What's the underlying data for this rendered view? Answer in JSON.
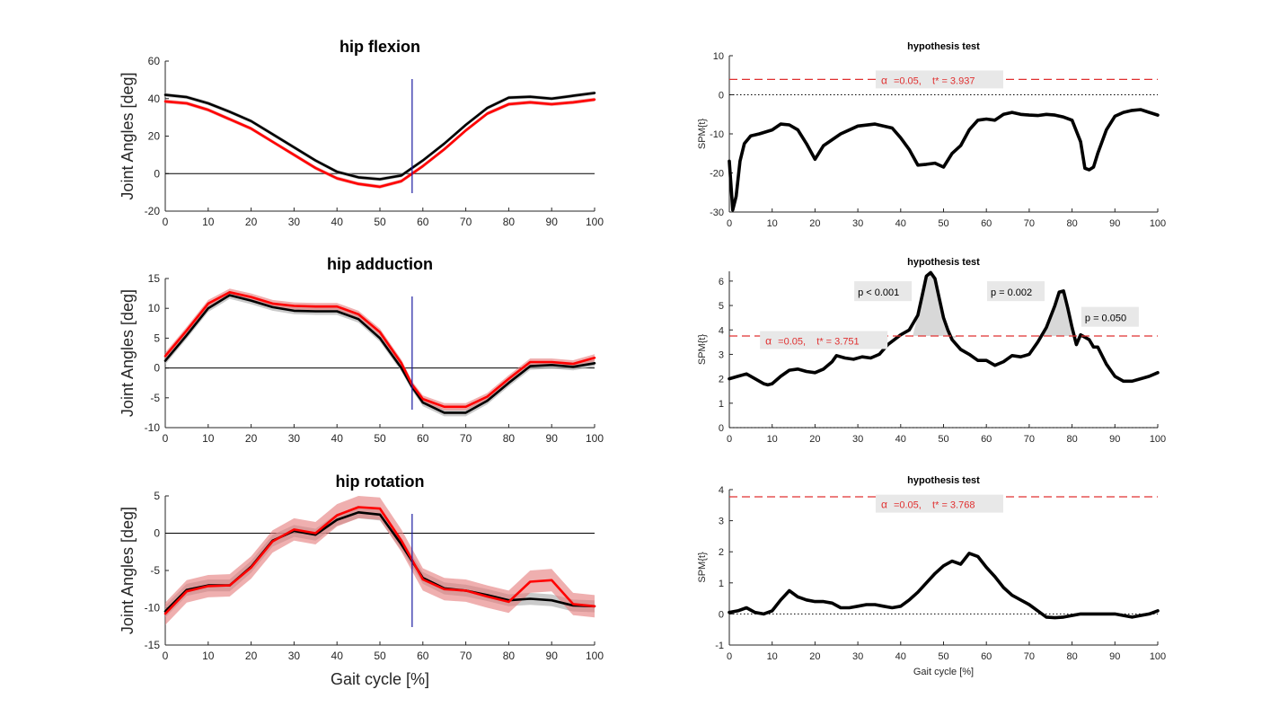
{
  "colors": {
    "black": "#000000",
    "red": "#ff0000",
    "black_band": "#b3b3b3",
    "red_band": "#e57a7a",
    "threshold": "#e03030",
    "vline": "#1a1aa0",
    "annot_bg": "#e8e8e8",
    "cluster_fill": "#d8d8d8"
  },
  "chart_data": [
    {
      "type": "line",
      "title": "hip flexion",
      "ylabel": "Joint Angles [deg]",
      "xlabel": "",
      "xlim": [
        0,
        100
      ],
      "ylim": [
        -20,
        60
      ],
      "xticks": [
        0,
        10,
        20,
        30,
        40,
        50,
        60,
        70,
        80,
        90,
        100
      ],
      "yticks": [
        -20,
        0,
        20,
        40,
        60
      ],
      "vline_x": 57.5,
      "zero_line": true,
      "x": [
        0,
        5,
        10,
        15,
        20,
        25,
        30,
        35,
        40,
        45,
        50,
        55,
        60,
        65,
        70,
        75,
        80,
        85,
        90,
        95,
        100
      ],
      "series": [
        {
          "color": "black",
          "band": 1.0,
          "values": [
            42,
            40.8,
            37.5,
            33,
            28,
            21,
            14,
            7,
            1,
            -2,
            -3,
            -1,
            7,
            16,
            26,
            35,
            40.5,
            41,
            40,
            41.5,
            43
          ]
        },
        {
          "color": "red",
          "band": 1.0,
          "values": [
            38.5,
            37.5,
            34,
            29,
            24,
            17,
            10,
            3,
            -2.5,
            -5.5,
            -7,
            -4,
            4,
            13,
            23,
            32,
            37,
            38,
            37,
            38,
            39.5
          ]
        }
      ]
    },
    {
      "type": "line",
      "title": "hip adduction",
      "ylabel": "Joint Angles [deg]",
      "xlabel": "",
      "xlim": [
        0,
        100
      ],
      "ylim": [
        -10,
        15
      ],
      "xticks": [
        0,
        10,
        20,
        30,
        40,
        50,
        60,
        70,
        80,
        90,
        100
      ],
      "yticks": [
        -10,
        -5,
        0,
        5,
        10,
        15
      ],
      "vline_x": 57.5,
      "zero_line": true,
      "x": [
        0,
        5,
        10,
        15,
        20,
        25,
        30,
        35,
        40,
        45,
        50,
        55,
        57.5,
        60,
        65,
        70,
        75,
        80,
        85,
        90,
        95,
        100
      ],
      "series": [
        {
          "color": "black",
          "band": 0.6,
          "values": [
            1.2,
            5.5,
            10,
            12.2,
            11.3,
            10.2,
            9.6,
            9.5,
            9.5,
            8.2,
            5,
            0,
            -3.2,
            -5.8,
            -7.5,
            -7.5,
            -5.5,
            -2.5,
            0.3,
            0.5,
            0.2,
            0.8
          ]
        },
        {
          "color": "red",
          "band": 0.6,
          "values": [
            2,
            6.3,
            10.8,
            12.7,
            11.9,
            10.8,
            10.4,
            10.3,
            10.3,
            9,
            6,
            0.8,
            -2.8,
            -5.2,
            -6.5,
            -6.5,
            -4.8,
            -1.8,
            1,
            1,
            0.7,
            1.7
          ]
        }
      ]
    },
    {
      "type": "line",
      "title": "hip rotation",
      "ylabel": "Joint Angles [deg]",
      "xlabel": "Gait cycle [%]",
      "xlim": [
        0,
        100
      ],
      "ylim": [
        -15,
        5
      ],
      "xticks": [
        0,
        10,
        20,
        30,
        40,
        50,
        60,
        70,
        80,
        90,
        100
      ],
      "yticks": [
        -15,
        -10,
        -5,
        0,
        5
      ],
      "vline_x": 57.5,
      "zero_line": true,
      "x": [
        0,
        5,
        10,
        15,
        20,
        25,
        30,
        35,
        40,
        45,
        50,
        55,
        60,
        65,
        70,
        75,
        80,
        85,
        90,
        95,
        100
      ],
      "series": [
        {
          "color": "black",
          "band": 0.8,
          "values": [
            -10.5,
            -7.6,
            -7,
            -7,
            -4.5,
            -1,
            0.3,
            -0.2,
            1.8,
            2.8,
            2.5,
            -1.5,
            -6,
            -7.4,
            -7.7,
            -8.3,
            -9,
            -8.8,
            -9,
            -9.7,
            -9.8
          ]
        },
        {
          "color": "red",
          "band": 1.5,
          "values": [
            -10.8,
            -7.8,
            -7.1,
            -7,
            -4.6,
            -1.1,
            0.5,
            0,
            2.4,
            3.5,
            3.3,
            -1,
            -6.2,
            -7.5,
            -7.7,
            -8.5,
            -9.2,
            -6.5,
            -6.3,
            -9.5,
            -9.8
          ]
        }
      ]
    },
    {
      "type": "line",
      "title": "hypothesis test",
      "ylabel": "SPM{t}",
      "xlabel": "",
      "xlim": [
        0,
        100
      ],
      "ylim": [
        -30,
        10
      ],
      "xticks": [
        0,
        10,
        20,
        30,
        40,
        50,
        60,
        70,
        80,
        90,
        100
      ],
      "yticks": [
        -30,
        -20,
        -10,
        0,
        10
      ],
      "threshold": 3.937,
      "threshold_label": {
        "alpha": "α",
        "rest": "=0.05,    t* = 3.937",
        "x": 35,
        "y": 3.7
      },
      "dotted_zero": true,
      "x": [
        0,
        0.8,
        1.6,
        2.5,
        3.5,
        5,
        7,
        10,
        12,
        14,
        16,
        18,
        20,
        22,
        26,
        30,
        34,
        38,
        40,
        42,
        44,
        46,
        48,
        50,
        52,
        54,
        56,
        58,
        60,
        62,
        64,
        66,
        68,
        70,
        72,
        74,
        76,
        78,
        80,
        82,
        83,
        84,
        85,
        86,
        88,
        90,
        92,
        94,
        96,
        98,
        100
      ],
      "series": [
        {
          "color": "black",
          "band": 0,
          "values": [
            -17,
            -29.5,
            -26,
            -17,
            -12.5,
            -10.5,
            -10,
            -9,
            -7.5,
            -7.7,
            -9,
            -12.5,
            -16.5,
            -13,
            -10,
            -8,
            -7.5,
            -8.5,
            -11,
            -14,
            -18,
            -17.8,
            -17.5,
            -18.5,
            -15,
            -13,
            -9,
            -6.5,
            -6.2,
            -6.5,
            -5,
            -4.5,
            -5,
            -5.2,
            -5.3,
            -5,
            -5.2,
            -5.7,
            -6.5,
            -12,
            -18.8,
            -19.2,
            -18.5,
            -15,
            -9,
            -5.5,
            -4.5,
            -4,
            -3.8,
            -4.5,
            -5.2
          ]
        }
      ]
    },
    {
      "type": "line",
      "title": "hypothesis test",
      "ylabel": "SPM{t}",
      "xlabel": "",
      "xlim": [
        0,
        100
      ],
      "ylim": [
        0,
        6.4
      ],
      "xticks": [
        0,
        10,
        20,
        30,
        40,
        50,
        60,
        70,
        80,
        90,
        100
      ],
      "yticks": [
        0,
        1,
        2,
        3,
        4,
        5,
        6
      ],
      "threshold": 3.751,
      "threshold_label": {
        "alpha": "α",
        "rest": "=0.05,    t* = 3.751",
        "x": 8,
        "y": 3.55
      },
      "dotted_zero": true,
      "clusters": [
        [
          42.8,
          53.4
        ],
        [
          72.5,
          79.9
        ]
      ],
      "annotations": [
        {
          "text": "p < 0.001",
          "x": 30,
          "y": 5.55
        },
        {
          "text": "p = 0.002",
          "x": 61,
          "y": 5.55
        },
        {
          "text": "p = 0.050",
          "x": 83,
          "y": 4.5
        }
      ],
      "x": [
        0,
        2,
        4,
        6,
        8,
        9,
        10,
        12,
        14,
        16,
        18,
        20,
        22,
        24,
        25,
        27,
        29,
        31,
        33,
        35,
        37,
        40,
        42,
        44,
        45,
        46,
        47,
        48,
        49,
        50,
        51,
        52,
        54,
        56,
        58,
        60,
        62,
        64,
        66,
        68,
        70,
        72,
        74,
        76,
        77,
        78,
        79,
        80,
        81,
        82,
        84,
        85,
        86,
        88,
        90,
        92,
        94,
        96,
        98,
        100
      ],
      "series": [
        {
          "color": "black",
          "band": 0,
          "values": [
            2,
            2.1,
            2.2,
            2,
            1.8,
            1.75,
            1.8,
            2.1,
            2.35,
            2.4,
            2.3,
            2.25,
            2.4,
            2.7,
            2.95,
            2.85,
            2.8,
            2.9,
            2.85,
            3,
            3.4,
            3.8,
            4,
            4.6,
            5.4,
            6.2,
            6.35,
            6.1,
            5.3,
            4.5,
            4,
            3.6,
            3.2,
            3,
            2.75,
            2.75,
            2.55,
            2.7,
            2.95,
            2.9,
            3,
            3.5,
            4.1,
            5,
            5.55,
            5.6,
            4.9,
            4.1,
            3.4,
            3.8,
            3.6,
            3.3,
            3.3,
            2.6,
            2.1,
            1.9,
            1.9,
            2,
            2.1,
            2.25
          ]
        }
      ]
    },
    {
      "type": "line",
      "title": "hypothesis test",
      "ylabel": "SPM{t}",
      "xlabel": "Gait cycle [%]",
      "xlim": [
        0,
        100
      ],
      "ylim": [
        -1,
        4
      ],
      "xticks": [
        0,
        10,
        20,
        30,
        40,
        50,
        60,
        70,
        80,
        90,
        100
      ],
      "yticks": [
        -1,
        0,
        1,
        2,
        3,
        4
      ],
      "threshold": 3.768,
      "threshold_label": {
        "alpha": "α",
        "rest": "=0.05,    t* = 3.768",
        "x": 35,
        "y": 3.52
      },
      "dotted_zero": true,
      "x": [
        0,
        2,
        4,
        6,
        8,
        10,
        12,
        14,
        16,
        18,
        20,
        22,
        24,
        26,
        28,
        30,
        32,
        34,
        36,
        38,
        40,
        42,
        44,
        46,
        48,
        50,
        52,
        54,
        56,
        58,
        60,
        62,
        64,
        66,
        68,
        70,
        72,
        74,
        76,
        78,
        80,
        82,
        84,
        86,
        88,
        90,
        92,
        94,
        96,
        98,
        100
      ],
      "series": [
        {
          "color": "black",
          "band": 0,
          "values": [
            0.05,
            0.1,
            0.2,
            0.05,
            0,
            0.1,
            0.45,
            0.75,
            0.55,
            0.45,
            0.4,
            0.4,
            0.35,
            0.2,
            0.2,
            0.25,
            0.3,
            0.3,
            0.25,
            0.2,
            0.25,
            0.45,
            0.7,
            1,
            1.3,
            1.55,
            1.7,
            1.6,
            1.95,
            1.85,
            1.5,
            1.2,
            0.85,
            0.6,
            0.45,
            0.3,
            0.1,
            -0.1,
            -0.12,
            -0.1,
            -0.05,
            0,
            0,
            0,
            0,
            0,
            -0.05,
            -0.1,
            -0.05,
            0,
            0.1
          ]
        }
      ]
    }
  ]
}
